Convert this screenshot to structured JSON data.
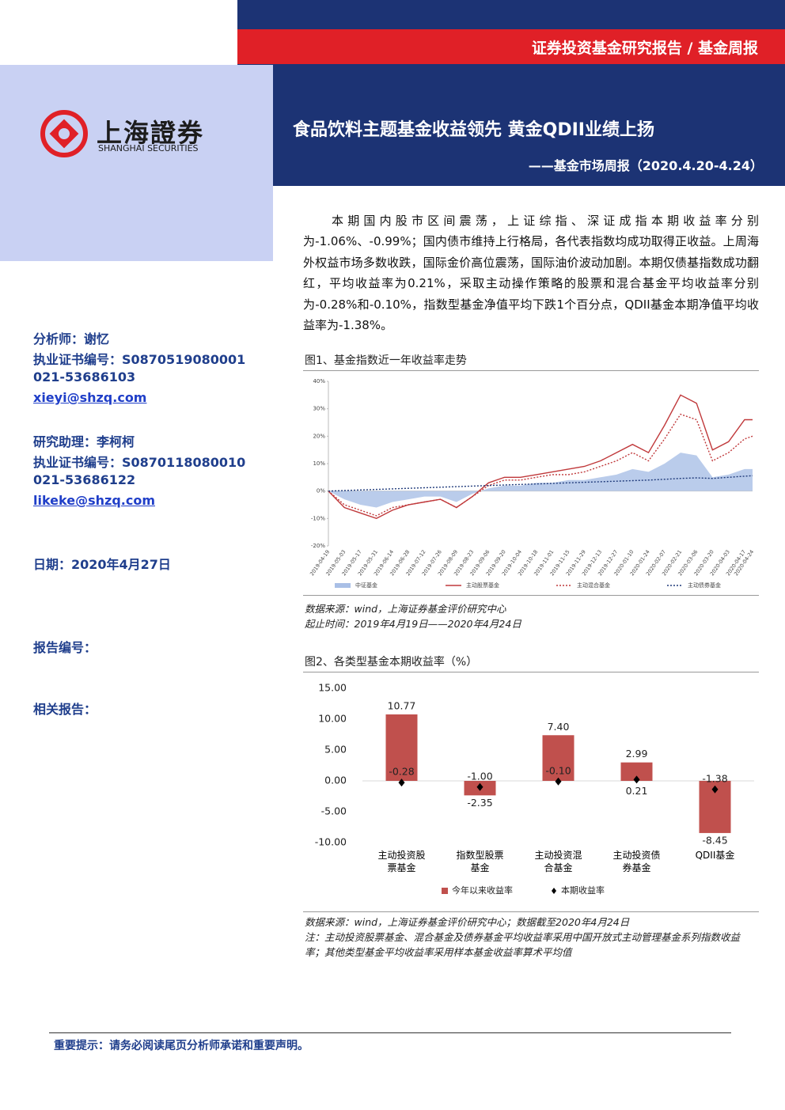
{
  "header": {
    "report_type": "证券投资基金研究报告 / 基金周报",
    "logo_cn": "上海證券",
    "logo_en": "SHANGHAI SECURITIES",
    "title": "食品饮料主题基金收益领先 黄金QDII业绩上扬",
    "subtitle": "——基金市场周报（2020.4.20-4.24）"
  },
  "sidebar": {
    "analyst": "分析师：谢忆",
    "cert1": "执业证书编号：S0870519080001",
    "phone1": "021-53686103",
    "email1": "xieyi@shzq.com",
    "assistant": "研究助理：李柯柯",
    "cert2": "执业证书编号：S0870118080010",
    "phone2": "021-53686122",
    "email2": "likeke@shzq.com",
    "date": "日期：2020年4月27日",
    "report_no": "报告编号：",
    "related": "相关报告："
  },
  "body": {
    "paragraph": "本期国内股市区间震荡，上证综指、深证成指本期收益率分别为-1.06%、-0.99%；国内债市维持上行格局，各代表指数均成功取得正收益。上周海外权益市场多数收跌，国际金价高位震荡，国际油价波动加剧。本期仅债基指数成功翻红，平均收益率为0.21%，采取主动操作策略的股票和混合基金平均收益率分别为-0.28%和-0.10%，指数型基金净值平均下跌1个百分点，QDII基金本期净值平均收益率为-1.38%。"
  },
  "chart_data": [
    {
      "type": "line",
      "title": "图1、基金指数近一年收益率走势",
      "x": [
        "2019-04-19",
        "2019-05-03",
        "2019-05-17",
        "2019-05-31",
        "2019-06-14",
        "2019-06-28",
        "2019-07-12",
        "2019-07-26",
        "2019-08-09",
        "2019-08-23",
        "2019-09-06",
        "2019-09-20",
        "2019-10-04",
        "2019-10-18",
        "2019-11-01",
        "2019-11-15",
        "2019-11-29",
        "2019-12-13",
        "2019-12-27",
        "2020-01-10",
        "2020-01-24",
        "2020-02-07",
        "2020-02-21",
        "2020-03-06",
        "2020-03-20",
        "2020-04-03",
        "2020-04-17",
        "2020-04-24"
      ],
      "series": [
        {
          "name": "中证基金",
          "style": "area",
          "color": "#a9bfe6",
          "values": [
            0,
            -3,
            -5,
            -6,
            -4,
            -3,
            -2,
            -2,
            -4,
            -1,
            1,
            2,
            2,
            3,
            3,
            4,
            4,
            5,
            6,
            8,
            7,
            10,
            14,
            13,
            5,
            6,
            8,
            8
          ]
        },
        {
          "name": "主动股票基金",
          "style": "solid",
          "color": "#c0393b",
          "values": [
            0,
            -6,
            -8,
            -10,
            -7,
            -5,
            -4,
            -3,
            -6,
            -2,
            3,
            5,
            5,
            6,
            7,
            8,
            9,
            11,
            14,
            17,
            14,
            24,
            35,
            32,
            15,
            18,
            26,
            26
          ]
        },
        {
          "name": "主动混合基金",
          "style": "dotted",
          "color": "#c0393b",
          "values": [
            0,
            -5,
            -7,
            -9,
            -6,
            -5,
            -4,
            -3,
            -6,
            -2,
            2,
            4,
            4,
            5,
            6,
            6,
            7,
            9,
            11,
            14,
            11,
            19,
            28,
            26,
            11,
            14,
            19,
            20
          ]
        },
        {
          "name": "主动债券基金",
          "style": "dotted",
          "color": "#1f3a7a",
          "values": [
            0,
            0.2,
            0.4,
            0.6,
            0.8,
            1,
            1.2,
            1.4,
            1.6,
            1.8,
            2,
            2.2,
            2.4,
            2.6,
            2.8,
            3,
            3.2,
            3.4,
            3.6,
            3.8,
            4,
            4.3,
            4.6,
            4.8,
            4.6,
            5,
            5.4,
            5.6
          ]
        }
      ],
      "ylim": [
        -20,
        40
      ],
      "yticks": [
        {
          "value": -20,
          "label": "-20%"
        },
        {
          "value": -10,
          "label": "-10%"
        },
        {
          "value": 0,
          "label": "0%"
        },
        {
          "value": 10,
          "label": "10%"
        },
        {
          "value": 20,
          "label": "20%"
        },
        {
          "value": 30,
          "label": "30%"
        },
        {
          "value": 40,
          "label": "40%"
        }
      ],
      "notes": [
        "数据来源：wind，上海证券基金评价研究中心",
        "起止时间：2019年4月19日——2020年4月24日"
      ]
    },
    {
      "type": "bar",
      "title": "图2、各类型基金本期收益率（%）",
      "categories": [
        "主动投资股票基金",
        "指数型股票基金",
        "主动投资混合基金",
        "主动投资债券基金",
        "QDII基金"
      ],
      "series": [
        {
          "name": "今年以来收益率",
          "color": "#c0504d",
          "values": [
            10.77,
            -2.35,
            7.4,
            2.99,
            -8.45
          ],
          "value_labels": [
            "10.77",
            "-2.35",
            "7.40",
            "2.99",
            "-8.45"
          ]
        },
        {
          "name": "本期收益率",
          "color": "#000000",
          "values": [
            -0.28,
            -1.0,
            -0.1,
            0.21,
            -1.38
          ],
          "value_labels": [
            "-0.28",
            "-1.00",
            "-0.10",
            "0.21",
            "-1.38"
          ]
        }
      ],
      "ylim": [
        -10,
        15
      ],
      "yticks": [
        {
          "value": -10,
          "label": "-10.00"
        },
        {
          "value": -5,
          "label": "-5.00"
        },
        {
          "value": 0,
          "label": "0.00"
        },
        {
          "value": 5,
          "label": "5.00"
        },
        {
          "value": 10,
          "label": "10.00"
        },
        {
          "value": 15,
          "label": "15.00"
        }
      ],
      "notes": [
        "数据来源：wind，上海证券基金评价研究中心；数据截至2020年4月24日",
        "注：主动投资股票基金、混合基金及债券基金平均收益率采用中国开放式主动管理基金系列指数收益率；其他类型基金平均收益率采用样本基金收益率算术平均值"
      ]
    }
  ],
  "footer": {
    "notice": "重要提示：请务必阅读尾页分析师承诺和重要声明。"
  }
}
